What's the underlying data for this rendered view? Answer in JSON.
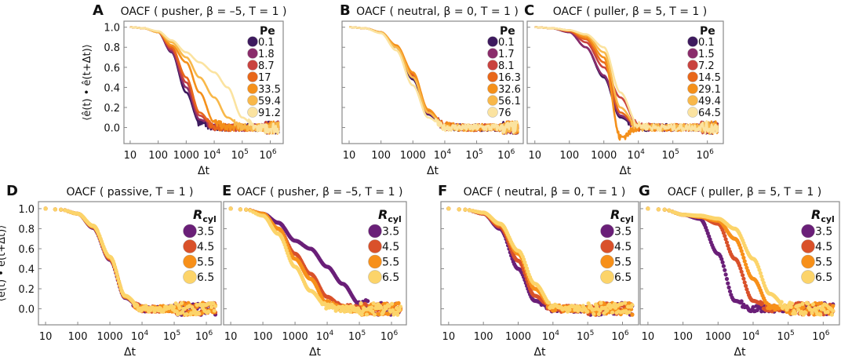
{
  "chart_data": [
    {
      "panel": "A",
      "type": "line",
      "title": "OACF ( pusher, β = –5, T = 1 )",
      "xlabel": "Δt",
      "ylabel": "⟨ê(t) • ê(t+Δt)⟩",
      "xscale": "log",
      "xlim": [
        6,
        2900000
      ],
      "ylim": [
        -0.16,
        1.06
      ],
      "x": [
        10,
        30,
        100,
        300,
        1000,
        3000,
        10000,
        30000,
        100000,
        300000,
        1000000,
        2000000
      ],
      "xticks": [
        "10",
        "100",
        "1000",
        "10⁴",
        "10⁵",
        "10⁶"
      ],
      "yticks": [
        "0.0",
        "0.2",
        "0.4",
        "0.6",
        "0.8",
        "1.0"
      ],
      "legend": {
        "title": "Pe",
        "placement": "top-right"
      },
      "series": [
        {
          "name": "0.1",
          "color": "#3d1a5e",
          "values": [
            1,
            0.99,
            0.95,
            0.75,
            0.35,
            0.05,
            0,
            0,
            0,
            0,
            0,
            0
          ]
        },
        {
          "name": "1.8",
          "color": "#8a2c6b",
          "values": [
            1,
            0.99,
            0.95,
            0.76,
            0.4,
            0.08,
            0,
            0,
            0,
            0,
            0,
            0
          ]
        },
        {
          "name": "8.7",
          "color": "#c9433f",
          "values": [
            1,
            0.99,
            0.95,
            0.78,
            0.45,
            0.12,
            0,
            0,
            0,
            0,
            0,
            0
          ]
        },
        {
          "name": "17",
          "color": "#e8671a",
          "values": [
            1,
            0.99,
            0.95,
            0.8,
            0.5,
            0.15,
            0.01,
            0,
            0,
            0,
            0,
            0
          ]
        },
        {
          "name": "33.5",
          "color": "#f4901b",
          "values": [
            1,
            0.99,
            0.95,
            0.82,
            0.65,
            0.35,
            0.05,
            0,
            0,
            0,
            0,
            0
          ]
        },
        {
          "name": "59.4",
          "color": "#f8b84a",
          "values": [
            1,
            0.99,
            0.95,
            0.85,
            0.7,
            0.5,
            0.3,
            0.1,
            0,
            0,
            0,
            0
          ]
        },
        {
          "name": "91.2",
          "color": "#fbe3a0",
          "values": [
            1,
            0.99,
            0.96,
            0.87,
            0.75,
            0.65,
            0.55,
            0.4,
            0.1,
            0,
            0,
            0
          ]
        }
      ]
    },
    {
      "panel": "B",
      "type": "line",
      "title": "OACF ( neutral, β = 0, T = 1 )",
      "xlabel": "Δt",
      "xscale": "log",
      "xlim": [
        6,
        2900000
      ],
      "ylim": [
        -0.16,
        1.06
      ],
      "x": [
        10,
        30,
        100,
        300,
        1000,
        3000,
        10000,
        30000,
        100000,
        300000,
        1000000,
        2000000
      ],
      "xticks": [
        "10",
        "100",
        "1000",
        "10⁴",
        "10⁵",
        "10⁶"
      ],
      "legend": {
        "title": "Pe",
        "placement": "top-right"
      },
      "series": [
        {
          "name": "0.1",
          "color": "#3d1a5e",
          "values": [
            1,
            0.99,
            0.95,
            0.8,
            0.48,
            0.13,
            0.01,
            0,
            0,
            0,
            0,
            0
          ]
        },
        {
          "name": "1.7",
          "color": "#8a2c6b",
          "values": [
            1,
            0.99,
            0.95,
            0.8,
            0.5,
            0.14,
            0.01,
            0,
            0,
            0,
            0,
            0
          ]
        },
        {
          "name": "8.1",
          "color": "#c9433f",
          "values": [
            1,
            0.99,
            0.95,
            0.81,
            0.52,
            0.16,
            0.01,
            0,
            0,
            0,
            0,
            0
          ]
        },
        {
          "name": "16.3",
          "color": "#e8671a",
          "values": [
            1,
            0.99,
            0.95,
            0.81,
            0.53,
            0.17,
            0.02,
            0,
            0,
            0,
            0,
            0
          ]
        },
        {
          "name": "32.6",
          "color": "#f4901b",
          "values": [
            1,
            0.99,
            0.95,
            0.82,
            0.55,
            0.18,
            0.02,
            0,
            0,
            0,
            0,
            0
          ]
        },
        {
          "name": "56.1",
          "color": "#f8b84a",
          "values": [
            1,
            0.99,
            0.95,
            0.8,
            0.5,
            0.15,
            0.01,
            0,
            0,
            0,
            0,
            0
          ]
        },
        {
          "name": "76",
          "color": "#fbe3a0",
          "values": [
            1,
            0.99,
            0.94,
            0.77,
            0.42,
            0.1,
            0,
            0,
            0,
            0,
            0,
            0
          ]
        }
      ]
    },
    {
      "panel": "C",
      "type": "line",
      "title": "OACF ( puller, β = 5, T = 1 )",
      "xlabel": "Δt",
      "xscale": "log",
      "xlim": [
        6,
        2900000
      ],
      "ylim": [
        -0.16,
        1.06
      ],
      "x": [
        10,
        30,
        100,
        300,
        1000,
        3000,
        10000,
        30000,
        100000,
        300000,
        1000000,
        2000000
      ],
      "xticks": [
        "10",
        "100",
        "1000",
        "10⁴",
        "10⁵",
        "10⁶"
      ],
      "legend": {
        "title": "Pe",
        "placement": "top-right"
      },
      "series": [
        {
          "name": "0.1",
          "color": "#3d1a5e",
          "values": [
            1,
            0.99,
            0.95,
            0.8,
            0.5,
            0.1,
            0,
            0,
            0,
            0,
            0,
            0
          ]
        },
        {
          "name": "1.5",
          "color": "#8a2c6b",
          "values": [
            1,
            0.99,
            0.95,
            0.8,
            0.52,
            0.12,
            0,
            0,
            0,
            0,
            0,
            0
          ]
        },
        {
          "name": "7.2",
          "color": "#c9433f",
          "values": [
            1,
            0.99,
            0.96,
            0.85,
            0.6,
            0.3,
            0.02,
            0,
            0,
            0,
            0,
            0
          ]
        },
        {
          "name": "14.5",
          "color": "#e8671a",
          "values": [
            1,
            0.99,
            0.96,
            0.88,
            0.65,
            0.15,
            0,
            0,
            0,
            0,
            0,
            0
          ]
        },
        {
          "name": "29.1",
          "color": "#f4901b",
          "values": [
            1,
            0.99,
            0.97,
            0.9,
            0.7,
            -0.1,
            0,
            0,
            0,
            0,
            0,
            0
          ]
        },
        {
          "name": "49.4",
          "color": "#f8b84a",
          "values": [
            1,
            0.99,
            0.97,
            0.92,
            0.75,
            0.2,
            0,
            0,
            0,
            0,
            0,
            0
          ]
        },
        {
          "name": "64.5",
          "color": "#fbe3a0",
          "values": [
            1,
            0.99,
            0.97,
            0.93,
            0.8,
            0.35,
            0.02,
            0,
            0,
            0,
            0,
            0
          ]
        }
      ]
    },
    {
      "panel": "D",
      "type": "scatter",
      "title": "OACF ( passive, T = 1 )",
      "xlabel": "Δt",
      "ylabel": "⟨ê(t) • ê(t+Δt)⟩",
      "xscale": "log",
      "xlim": [
        6,
        2900000
      ],
      "ylim": [
        -0.16,
        1.07
      ],
      "x": [
        10,
        30,
        100,
        300,
        1000,
        3000,
        10000,
        30000,
        100000,
        300000,
        1000000,
        2000000
      ],
      "xticks": [
        "10",
        "100",
        "1000",
        "10⁴",
        "10⁵",
        "10⁶"
      ],
      "yticks": [
        "0.0",
        "0.2",
        "0.4",
        "0.6",
        "0.8",
        "1.0"
      ],
      "legend": {
        "title": "R",
        "title_sub": "cyl",
        "placement": "top-right"
      },
      "series": [
        {
          "name": "3.5",
          "color": "#6a1f78",
          "values": [
            1,
            0.99,
            0.95,
            0.81,
            0.49,
            0.11,
            0,
            0,
            0,
            0,
            0,
            0
          ]
        },
        {
          "name": "4.5",
          "color": "#d9512a",
          "values": [
            1,
            0.99,
            0.95,
            0.82,
            0.5,
            0.12,
            0,
            0,
            0,
            0,
            0,
            0
          ]
        },
        {
          "name": "5.5",
          "color": "#f7901a",
          "values": [
            1,
            0.99,
            0.95,
            0.82,
            0.51,
            0.12,
            0,
            0,
            0,
            0,
            0,
            0
          ]
        },
        {
          "name": "6.5",
          "color": "#fcd46a",
          "values": [
            1,
            0.99,
            0.95,
            0.83,
            0.52,
            0.13,
            0,
            0,
            0,
            0,
            0,
            0
          ]
        }
      ]
    },
    {
      "panel": "E",
      "type": "scatter",
      "title": "OACF ( pusher, β = –5, T = 1 )",
      "xlabel": "Δt",
      "xscale": "log",
      "xlim": [
        6,
        2900000
      ],
      "ylim": [
        -0.16,
        1.07
      ],
      "x": [
        10,
        30,
        100,
        300,
        1000,
        3000,
        10000,
        30000,
        100000,
        300000,
        1000000,
        2000000
      ],
      "xticks": [
        "10",
        "100",
        "1000",
        "10⁴",
        "10⁵",
        "10⁶"
      ],
      "legend": {
        "title": "R",
        "title_sub": "cyl",
        "placement": "top-right"
      },
      "series": [
        {
          "name": "3.5",
          "color": "#6a1f78",
          "values": [
            1,
            0.99,
            0.95,
            0.86,
            0.68,
            0.6,
            0.42,
            0.25,
            0.05,
            0,
            0,
            0
          ]
        },
        {
          "name": "4.5",
          "color": "#d9512a",
          "values": [
            1,
            0.99,
            0.95,
            0.8,
            0.55,
            0.35,
            0.12,
            0.02,
            0,
            0,
            0,
            0
          ]
        },
        {
          "name": "5.5",
          "color": "#f7901a",
          "values": [
            1,
            0.99,
            0.95,
            0.8,
            0.5,
            0.3,
            0.05,
            0,
            0,
            0,
            0,
            0
          ]
        },
        {
          "name": "6.5",
          "color": "#fcd46a",
          "values": [
            1,
            0.99,
            0.93,
            0.75,
            0.42,
            0.18,
            0.02,
            0,
            0,
            0,
            0,
            0
          ]
        }
      ]
    },
    {
      "panel": "F",
      "type": "scatter",
      "title": "OACF ( neutral, β = 0, T = 1 )",
      "xlabel": "Δt",
      "xscale": "log",
      "xlim": [
        6,
        2900000
      ],
      "ylim": [
        -0.16,
        1.07
      ],
      "x": [
        10,
        30,
        100,
        300,
        1000,
        3000,
        10000,
        30000,
        100000,
        300000,
        1000000,
        2000000
      ],
      "xticks": [
        "10",
        "100",
        "1000",
        "10⁴",
        "10⁵",
        "10⁶"
      ],
      "legend": {
        "title": "R",
        "title_sub": "cyl",
        "placement": "top-right"
      },
      "series": [
        {
          "name": "3.5",
          "color": "#6a1f78",
          "values": [
            1,
            0.99,
            0.95,
            0.8,
            0.4,
            0.08,
            0,
            0,
            0,
            0,
            0,
            0
          ]
        },
        {
          "name": "4.5",
          "color": "#d9512a",
          "values": [
            1,
            0.99,
            0.95,
            0.82,
            0.48,
            0.13,
            0,
            0,
            0,
            0,
            0,
            0
          ]
        },
        {
          "name": "5.5",
          "color": "#f7901a",
          "values": [
            1,
            0.99,
            0.96,
            0.84,
            0.55,
            0.2,
            0.01,
            0,
            0,
            0,
            0,
            0
          ]
        },
        {
          "name": "6.5",
          "color": "#fcd46a",
          "values": [
            1,
            0.99,
            0.96,
            0.85,
            0.58,
            0.25,
            0.02,
            0,
            0,
            0,
            0,
            0
          ]
        }
      ]
    },
    {
      "panel": "G",
      "type": "scatter",
      "title": "OACF ( puller, β = 5, T = 1 )",
      "xlabel": "Δt",
      "xscale": "log",
      "xlim": [
        6,
        2900000
      ],
      "ylim": [
        -0.16,
        1.07
      ],
      "x": [
        10,
        30,
        100,
        300,
        1000,
        3000,
        10000,
        30000,
        100000,
        300000,
        1000000,
        2000000
      ],
      "xticks": [
        "10",
        "100",
        "1000",
        "10⁴",
        "10⁵",
        "10⁶"
      ],
      "legend": {
        "title": "R",
        "title_sub": "cyl",
        "placement": "top-right"
      },
      "series": [
        {
          "name": "3.5",
          "color": "#6a1f78",
          "values": [
            1,
            0.99,
            0.94,
            0.9,
            0.55,
            0.08,
            0,
            0,
            0,
            0,
            0,
            0
          ]
        },
        {
          "name": "4.5",
          "color": "#d9512a",
          "values": [
            1,
            0.99,
            0.94,
            0.92,
            0.85,
            0.5,
            0.08,
            0,
            0,
            0,
            0,
            0
          ]
        },
        {
          "name": "5.5",
          "color": "#f7901a",
          "values": [
            1,
            0.99,
            0.94,
            0.92,
            0.88,
            0.7,
            0.3,
            0.02,
            0,
            0,
            0,
            0
          ]
        },
        {
          "name": "6.5",
          "color": "#fcd46a",
          "values": [
            1,
            0.99,
            0.94,
            0.93,
            0.9,
            0.8,
            0.5,
            0.15,
            0,
            0,
            0,
            0
          ]
        }
      ]
    }
  ]
}
